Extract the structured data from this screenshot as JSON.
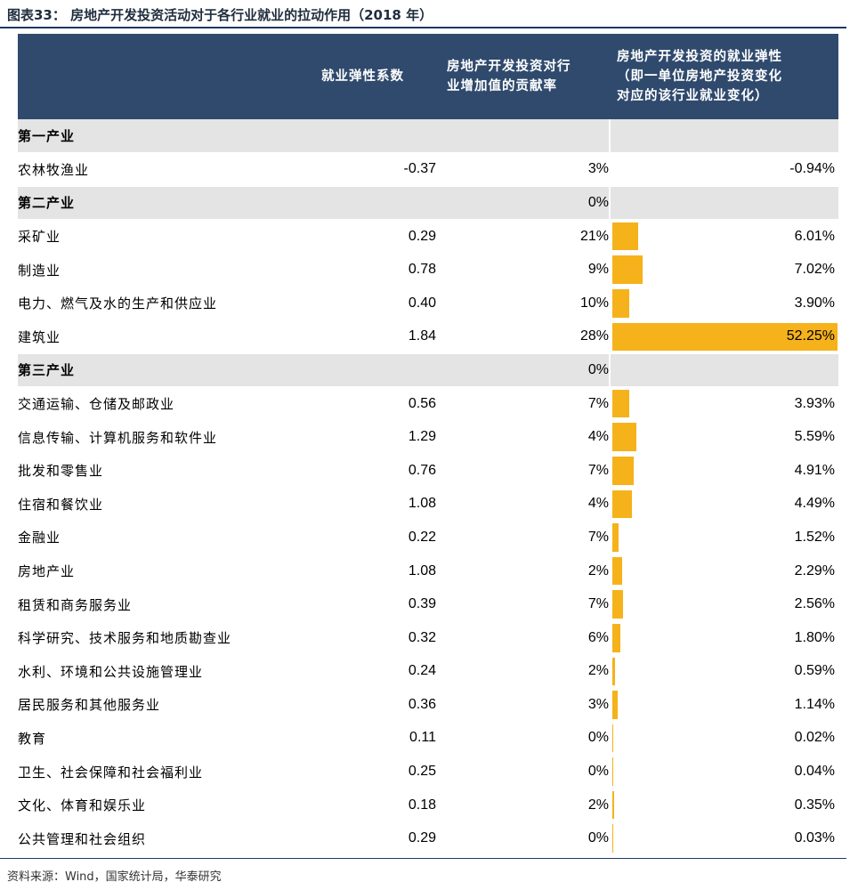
{
  "title": "图表33：  房地产开发投资活动对于各行业就业的拉动作用（2018 年）",
  "headers": {
    "col1": "",
    "col2": "就业弹性系数",
    "col3_line1": "房地产开发投资对行",
    "col3_line2": "业增加值的贡献率",
    "col4_line1": "房地产开发投资的就业弹性",
    "col4_line2": "（即一单位房地产投资变化",
    "col4_line3": "对应的该行业就业变化）"
  },
  "bar_color": "#f6b21a",
  "header_color": "#2f4a6d",
  "rows": [
    {
      "type": "section",
      "industry": "第一产业",
      "elasticity": "",
      "contribution": "",
      "employment": "",
      "employment_value": null
    },
    {
      "type": "data",
      "industry": "农林牧渔业",
      "elasticity": "-0.37",
      "contribution": "3%",
      "employment": "-0.94%",
      "employment_value": -0.94
    },
    {
      "type": "section",
      "industry": "第二产业",
      "elasticity": "",
      "contribution": "0%",
      "employment": "",
      "employment_value": null
    },
    {
      "type": "data",
      "industry": "采矿业",
      "elasticity": "0.29",
      "contribution": "21%",
      "employment": "6.01%",
      "employment_value": 6.01
    },
    {
      "type": "data",
      "industry": "制造业",
      "elasticity": "0.78",
      "contribution": "9%",
      "employment": "7.02%",
      "employment_value": 7.02
    },
    {
      "type": "data",
      "industry": "电力、燃气及水的生产和供应业",
      "elasticity": "0.40",
      "contribution": "10%",
      "employment": "3.90%",
      "employment_value": 3.9
    },
    {
      "type": "data",
      "industry": "建筑业",
      "elasticity": "1.84",
      "contribution": "28%",
      "employment": "52.25%",
      "employment_value": 52.25
    },
    {
      "type": "section",
      "industry": "第三产业",
      "elasticity": "",
      "contribution": "0%",
      "employment": "",
      "employment_value": null
    },
    {
      "type": "data",
      "industry": "交通运输、仓储及邮政业",
      "elasticity": "0.56",
      "contribution": "7%",
      "employment": "3.93%",
      "employment_value": 3.93
    },
    {
      "type": "data",
      "industry": "信息传输、计算机服务和软件业",
      "elasticity": "1.29",
      "contribution": "4%",
      "employment": "5.59%",
      "employment_value": 5.59
    },
    {
      "type": "data",
      "industry": "批发和零售业",
      "elasticity": "0.76",
      "contribution": "7%",
      "employment": "4.91%",
      "employment_value": 4.91
    },
    {
      "type": "data",
      "industry": "住宿和餐饮业",
      "elasticity": "1.08",
      "contribution": "4%",
      "employment": "4.49%",
      "employment_value": 4.49
    },
    {
      "type": "data",
      "industry": "金融业",
      "elasticity": "0.22",
      "contribution": "7%",
      "employment": "1.52%",
      "employment_value": 1.52
    },
    {
      "type": "data",
      "industry": "房地产业",
      "elasticity": "1.08",
      "contribution": "2%",
      "employment": "2.29%",
      "employment_value": 2.29
    },
    {
      "type": "data",
      "industry": "租赁和商务服务业",
      "elasticity": "0.39",
      "contribution": "7%",
      "employment": "2.56%",
      "employment_value": 2.56
    },
    {
      "type": "data",
      "industry": "科学研究、技术服务和地质勘查业",
      "elasticity": "0.32",
      "contribution": "6%",
      "employment": "1.80%",
      "employment_value": 1.8
    },
    {
      "type": "data",
      "industry": "水利、环境和公共设施管理业",
      "elasticity": "0.24",
      "contribution": "2%",
      "employment": "0.59%",
      "employment_value": 0.59
    },
    {
      "type": "data",
      "industry": "居民服务和其他服务业",
      "elasticity": "0.36",
      "contribution": "3%",
      "employment": "1.14%",
      "employment_value": 1.14
    },
    {
      "type": "data",
      "industry": "教育",
      "elasticity": "0.11",
      "contribution": "0%",
      "employment": "0.02%",
      "employment_value": 0.02
    },
    {
      "type": "data",
      "industry": "卫生、社会保障和社会福利业",
      "elasticity": "0.25",
      "contribution": "0%",
      "employment": "0.04%",
      "employment_value": 0.04
    },
    {
      "type": "data",
      "industry": "文化、体育和娱乐业",
      "elasticity": "0.18",
      "contribution": "2%",
      "employment": "0.35%",
      "employment_value": 0.35
    },
    {
      "type": "data",
      "industry": "公共管理和社会组织",
      "elasticity": "0.29",
      "contribution": "0%",
      "employment": "0.03%",
      "employment_value": 0.03
    }
  ],
  "source": "资料来源：Wind，国家统计局，华泰研究"
}
